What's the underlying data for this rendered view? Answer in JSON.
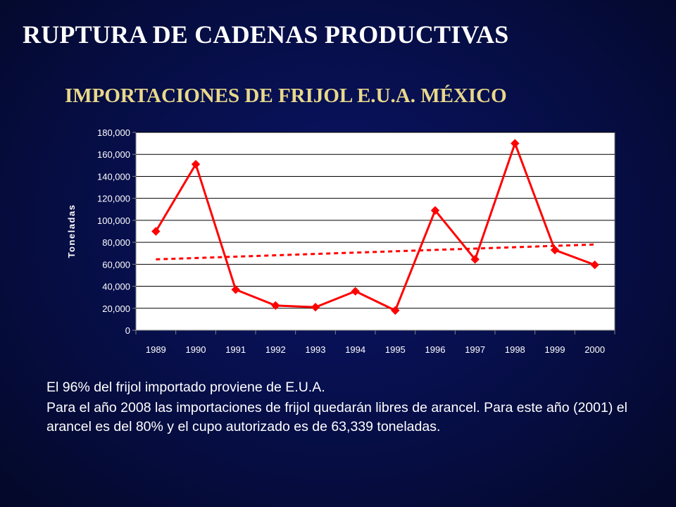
{
  "slide": {
    "title": "RUPTURA DE CADENAS PRODUCTIVAS",
    "subtitle": "IMPORTACIONES DE FRIJOL  E.U.A. MÉXICO",
    "paragraph1": "El 96% del frijol importado proviene de E.U.A.",
    "paragraph2": "Para el año 2008 las importaciones de frijol quedarán libres de arancel. Para este año (2001) el arancel es del 80% y el cupo autorizado es de 63,339 toneladas."
  },
  "chart_data": {
    "type": "line",
    "title": "",
    "xlabel": "",
    "ylabel": "Toneladas",
    "categories": [
      "1989",
      "1990",
      "1991",
      "1992",
      "1993",
      "1994",
      "1995",
      "1996",
      "1997",
      "1998",
      "1999",
      "2000"
    ],
    "series": [
      {
        "name": "",
        "values": [
          90000,
          151000,
          37000,
          22500,
          21000,
          35500,
          18000,
          109000,
          64500,
          170000,
          73000,
          59500
        ],
        "color": "#ff0000",
        "marker": "diamond"
      }
    ],
    "trendline": {
      "type": "linear",
      "style": "dashed",
      "color": "#ff0000",
      "start": 64500,
      "end": 78000
    },
    "ylim": [
      0,
      180000
    ],
    "yticks": [
      0,
      20000,
      40000,
      60000,
      80000,
      100000,
      120000,
      140000,
      160000,
      180000
    ],
    "ytick_labels": [
      "0",
      "20,000",
      "40,000",
      "60,000",
      "80,000",
      "100,000",
      "120,000",
      "140,000",
      "160,000",
      "180,000"
    ],
    "grid": true,
    "plot_background": "#ffffff",
    "legend": "none"
  }
}
